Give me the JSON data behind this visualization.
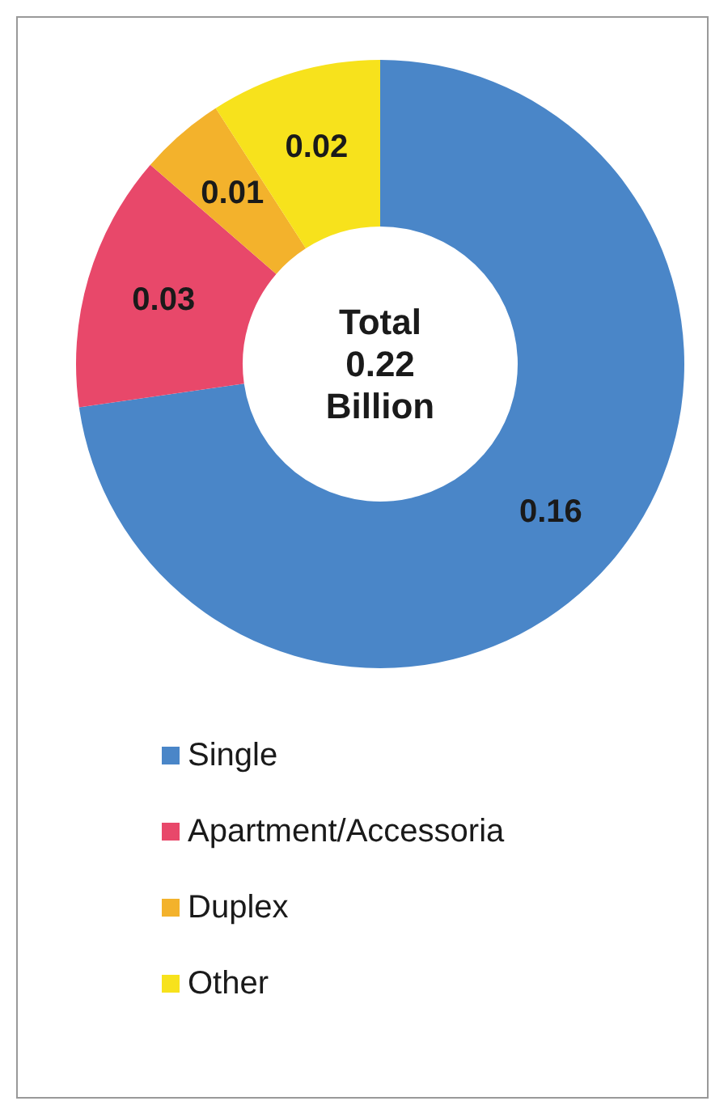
{
  "chart_data": {
    "type": "donut",
    "categories": [
      "Single",
      "Apartment/Accessoria",
      "Duplex",
      "Other"
    ],
    "values": [
      0.16,
      0.03,
      0.01,
      0.02
    ],
    "colors": [
      "#4a86c8",
      "#e8486a",
      "#f3b22c",
      "#f7e21c"
    ],
    "data_labels": true,
    "legend": "bottom",
    "annotations": [
      "Total 0.22 Billion"
    ]
  }
}
